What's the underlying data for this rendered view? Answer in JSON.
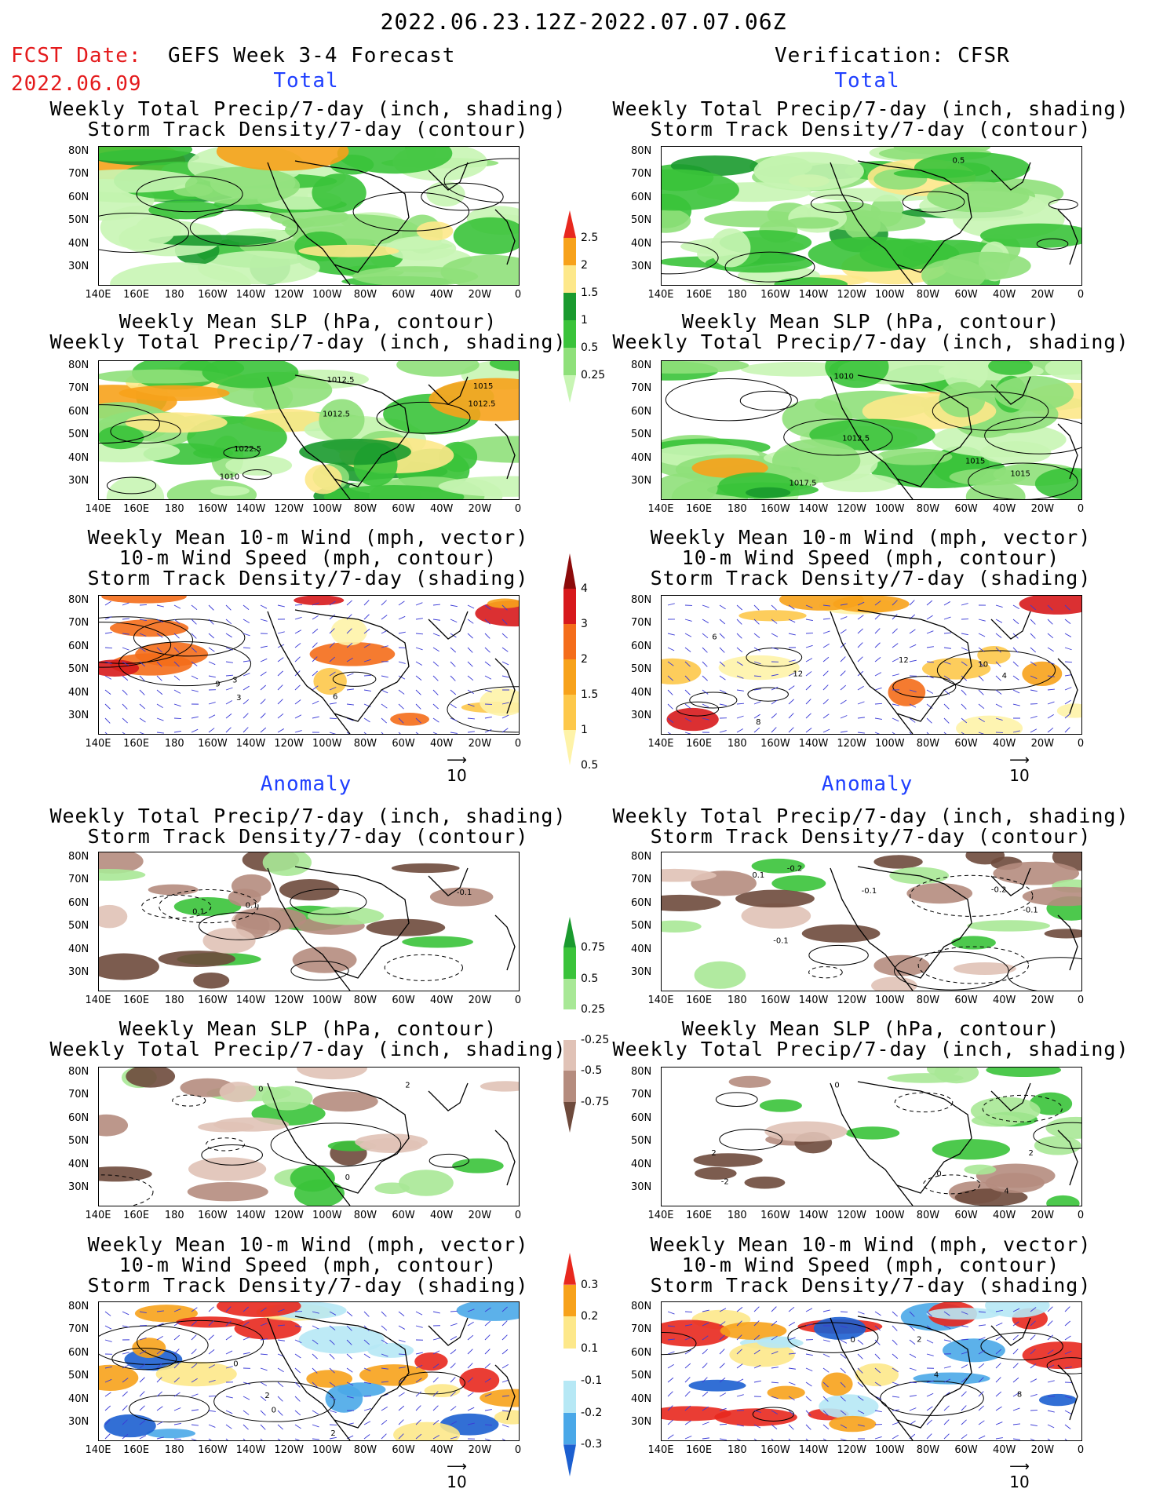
{
  "header": {
    "period": "2022.06.23.12Z-2022.07.07.06Z",
    "fcst_label": "FCST Date:",
    "fcst_date": "2022.06.09",
    "left_title": "GEFS Week 3-4 Forecast",
    "right_title": "Verification: CFSR",
    "total_label": "Total",
    "anomaly_label": "Anomaly"
  },
  "panel_titles": {
    "precip_storm": [
      "Weekly Total Precip/7-day (inch, shading)",
      "Storm Track Density/7-day (contour)"
    ],
    "slp_precip": [
      "Weekly Mean SLP (hPa, contour)",
      "Weekly Total Precip/7-day (inch, shading)"
    ],
    "wind_storm": [
      "Weekly Mean 10-m Wind (mph, vector)",
      "10-m Wind Speed (mph, contour)",
      "Storm Track Density/7-day (shading)"
    ]
  },
  "axes": {
    "lat": [
      "80N",
      "70N",
      "60N",
      "50N",
      "40N",
      "30N"
    ],
    "lon": [
      "140E",
      "160E",
      "180",
      "160W",
      "140W",
      "120W",
      "100W",
      "80W",
      "60W",
      "40W",
      "20W",
      "0"
    ]
  },
  "contour_labels": {
    "fcst_slp": [
      "1010",
      "1012.5",
      "1015",
      "1012.5",
      "1012.5",
      "1022.5"
    ],
    "cfsr_slp": [
      "1015",
      "1015",
      "1017.5",
      "1012.5",
      "1010"
    ],
    "cfsr_precip_storm": [
      "0.5"
    ],
    "fcst_wind": [
      "3",
      "9",
      "6",
      "3"
    ],
    "cfsr_wind": [
      "10",
      "12",
      "4",
      "8",
      "12",
      "6"
    ],
    "fcst_anom_precip": [
      "0.1",
      "-0.1",
      "0.1"
    ],
    "cfsr_anom_precip": [
      "-0.2",
      "-0.2",
      "-0.1",
      "-0.1",
      "0.1",
      "-0.1"
    ],
    "fcst_anom_slp": [
      "0",
      "0",
      "2"
    ],
    "cfsr_anom_slp": [
      "4",
      "2",
      "-2",
      "0",
      "2",
      "0"
    ],
    "fcst_anom_wind": [
      "0",
      "0",
      "2",
      "2"
    ],
    "cfsr_anom_wind": [
      "8",
      "2",
      "4",
      "0"
    ]
  },
  "vector_reference": "10",
  "colorbars": {
    "precip_total": {
      "labels": [
        "2.5",
        "2",
        "1.5",
        "1",
        "0.5",
        "0.25"
      ],
      "colors": [
        "#e8281e",
        "#f7a21b",
        "#fde88a",
        "#1a9a2e",
        "#3ac33a",
        "#8fe07a",
        "#c8f5b4"
      ]
    },
    "storm_total": {
      "labels": [
        "4",
        "3",
        "2",
        "1.5",
        "1",
        "0.5"
      ],
      "colors": [
        "#8c0a0a",
        "#d7191c",
        "#f46d1a",
        "#f7a21b",
        "#fdc84a",
        "#fef3a8"
      ]
    },
    "precip_anom": {
      "labels": [
        "0.75",
        "0.5",
        "0.25",
        "-0.25",
        "-0.5",
        "-0.75"
      ],
      "colors": [
        "#1a9a2e",
        "#3ac33a",
        "#a8e896",
        "#ffffff",
        "#e0c2b6",
        "#b58c7e",
        "#6e4a3c"
      ]
    },
    "storm_anom": {
      "labels": [
        "0.3",
        "0.2",
        "0.1",
        "-0.1",
        "-0.2",
        "-0.3"
      ],
      "colors": [
        "#e8281e",
        "#f7a21b",
        "#fde88a",
        "#ffffff",
        "#b6e8f5",
        "#4aa8e8",
        "#1c5fd0"
      ]
    }
  }
}
